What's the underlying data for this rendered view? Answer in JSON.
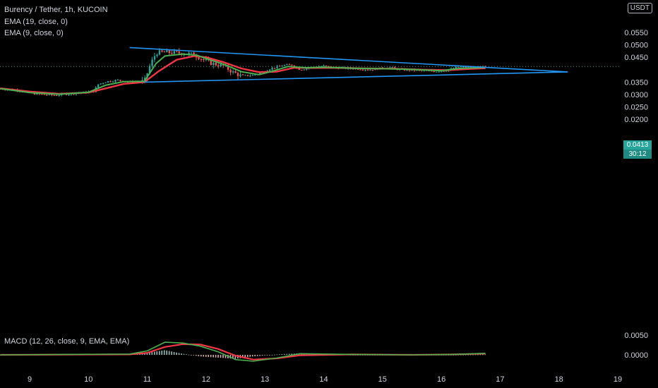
{
  "header": {
    "symbol_line": "Burency / Tether, 1h, KUCOIN",
    "ema1": "EMA (19, close, 0)",
    "ema2": "EMA (9, close, 0)",
    "macd": "MACD (12, 26, close, 9, EMA, EMA)",
    "currency": "USDT"
  },
  "price_axis": {
    "ticks": [
      "0.0550",
      "0.0500",
      "0.0450",
      "0.0350",
      "0.0300",
      "0.0250",
      "0.0200"
    ],
    "current_price": "0.0413",
    "countdown": "30:12"
  },
  "macd_axis": {
    "ticks": [
      "0.0050",
      "0.0000"
    ]
  },
  "time_axis": {
    "ticks": [
      "9",
      "10",
      "11",
      "12",
      "13",
      "14",
      "15",
      "16",
      "17",
      "18",
      "19"
    ]
  },
  "colors": {
    "up": "#26a69a",
    "down": "#ef5350",
    "ema_fast": "#4caf50",
    "ema_slow": "#f23645",
    "trendline": "#2196f3",
    "background": "#000000"
  },
  "chart_data": {
    "type": "candlestick",
    "x_unit": "day",
    "y_unit": "USDT",
    "trendlines": [
      {
        "name": "upper",
        "from": [
          10.7,
          0.0489
        ],
        "to": [
          18.15,
          0.0391
        ]
      },
      {
        "name": "lower",
        "from": [
          10.95,
          0.035
        ],
        "to": [
          18.15,
          0.0391
        ]
      }
    ],
    "close_path": [
      [
        8.5,
        0.0323
      ],
      [
        8.8,
        0.0318
      ],
      [
        9.1,
        0.0302
      ],
      [
        9.4,
        0.0297
      ],
      [
        9.7,
        0.0303
      ],
      [
        9.9,
        0.0308
      ],
      [
        10.1,
        0.0313
      ],
      [
        10.15,
        0.034
      ],
      [
        10.3,
        0.0352
      ],
      [
        10.5,
        0.0358
      ],
      [
        10.7,
        0.035
      ],
      [
        10.95,
        0.0353
      ],
      [
        11.05,
        0.042
      ],
      [
        11.15,
        0.0468
      ],
      [
        11.3,
        0.047
      ],
      [
        11.5,
        0.0468
      ],
      [
        11.7,
        0.0465
      ],
      [
        11.85,
        0.0455
      ],
      [
        11.95,
        0.044
      ],
      [
        12.1,
        0.0425
      ],
      [
        12.3,
        0.0415
      ],
      [
        12.45,
        0.039
      ],
      [
        12.6,
        0.0375
      ],
      [
        12.8,
        0.0378
      ],
      [
        12.95,
        0.039
      ],
      [
        13.1,
        0.0405
      ],
      [
        13.3,
        0.0417
      ],
      [
        13.45,
        0.042
      ],
      [
        13.6,
        0.04
      ],
      [
        13.8,
        0.041
      ],
      [
        14.0,
        0.0415
      ],
      [
        14.2,
        0.0408
      ],
      [
        14.5,
        0.0405
      ],
      [
        14.8,
        0.04
      ],
      [
        15.1,
        0.041
      ],
      [
        15.3,
        0.04
      ],
      [
        15.6,
        0.0397
      ],
      [
        15.9,
        0.0393
      ],
      [
        16.1,
        0.0398
      ],
      [
        16.3,
        0.0412
      ],
      [
        16.5,
        0.0408
      ],
      [
        16.75,
        0.0413
      ]
    ],
    "ema_fast_path": [
      [
        8.5,
        0.0324
      ],
      [
        9.0,
        0.0308
      ],
      [
        9.5,
        0.0301
      ],
      [
        10.0,
        0.0309
      ],
      [
        10.3,
        0.0338
      ],
      [
        10.6,
        0.0352
      ],
      [
        10.95,
        0.0353
      ],
      [
        11.15,
        0.0425
      ],
      [
        11.3,
        0.0455
      ],
      [
        11.6,
        0.0463
      ],
      [
        11.85,
        0.0458
      ],
      [
        12.0,
        0.0445
      ],
      [
        12.3,
        0.0422
      ],
      [
        12.6,
        0.0392
      ],
      [
        12.9,
        0.038
      ],
      [
        13.1,
        0.0392
      ],
      [
        13.4,
        0.0413
      ],
      [
        13.7,
        0.0408
      ],
      [
        14.0,
        0.041
      ],
      [
        14.5,
        0.0406
      ],
      [
        15.0,
        0.0404
      ],
      [
        15.5,
        0.0401
      ],
      [
        16.0,
        0.0396
      ],
      [
        16.3,
        0.0405
      ],
      [
        16.75,
        0.0409
      ]
    ],
    "ema_slow_path": [
      [
        8.5,
        0.0325
      ],
      [
        9.0,
        0.0312
      ],
      [
        9.5,
        0.0303
      ],
      [
        10.0,
        0.0308
      ],
      [
        10.3,
        0.0325
      ],
      [
        10.6,
        0.0343
      ],
      [
        10.95,
        0.035
      ],
      [
        11.2,
        0.0395
      ],
      [
        11.5,
        0.044
      ],
      [
        11.8,
        0.0455
      ],
      [
        12.0,
        0.045
      ],
      [
        12.3,
        0.043
      ],
      [
        12.6,
        0.0405
      ],
      [
        12.9,
        0.039
      ],
      [
        13.2,
        0.0392
      ],
      [
        13.5,
        0.0408
      ],
      [
        13.8,
        0.0407
      ],
      [
        14.2,
        0.0408
      ],
      [
        14.7,
        0.0405
      ],
      [
        15.2,
        0.0404
      ],
      [
        15.7,
        0.04
      ],
      [
        16.1,
        0.0398
      ],
      [
        16.4,
        0.0402
      ],
      [
        16.75,
        0.0406
      ]
    ],
    "macd_line": [
      [
        8.5,
        0.0
      ],
      [
        10.7,
        0.0002
      ],
      [
        11.0,
        0.001
      ],
      [
        11.3,
        0.0032
      ],
      [
        11.6,
        0.003
      ],
      [
        11.9,
        0.0022
      ],
      [
        12.2,
        0.0008
      ],
      [
        12.5,
        -0.0012
      ],
      [
        12.8,
        -0.0016
      ],
      [
        13.2,
        -0.0008
      ],
      [
        13.6,
        0.0003
      ],
      [
        14.5,
        0.0001
      ],
      [
        15.5,
        0.0
      ],
      [
        16.2,
        0.0001
      ],
      [
        16.75,
        0.0004
      ]
    ],
    "signal_line": [
      [
        8.5,
        0.0
      ],
      [
        10.7,
        0.0001
      ],
      [
        11.0,
        0.0005
      ],
      [
        11.3,
        0.002
      ],
      [
        11.6,
        0.0027
      ],
      [
        11.9,
        0.0026
      ],
      [
        12.2,
        0.0015
      ],
      [
        12.5,
        -0.0002
      ],
      [
        12.8,
        -0.0012
      ],
      [
        13.2,
        -0.0009
      ],
      [
        13.6,
        -0.0001
      ],
      [
        14.5,
        0.0001
      ],
      [
        15.5,
        0.0
      ],
      [
        16.2,
        0.0001
      ],
      [
        16.75,
        0.0003
      ]
    ]
  }
}
